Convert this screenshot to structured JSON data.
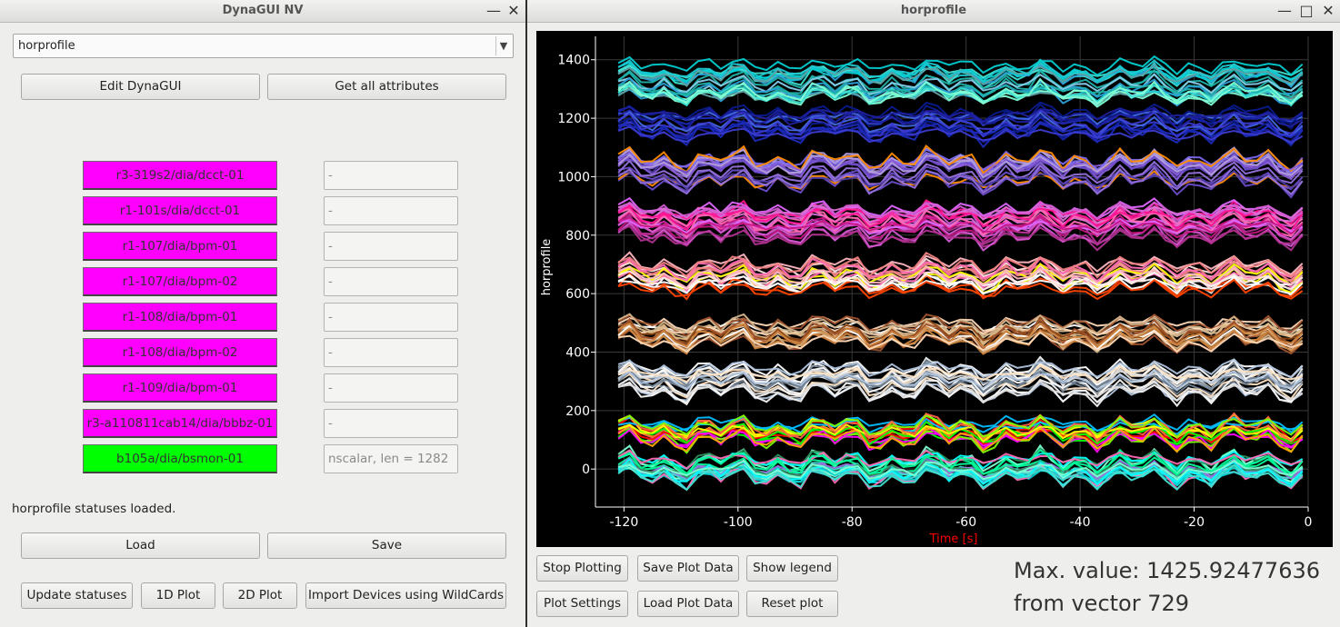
{
  "left_window": {
    "title": "DynaGUI NV",
    "min_symbol": "—",
    "close_symbol": "✕",
    "combo_value": "horprofile",
    "combo_arrow": "⌵",
    "edit_button": "Edit DynaGUI",
    "get_all_button": "Get all attributes",
    "devices": [
      {
        "name": "r3-319s2/dia/dcct-01",
        "value": "-",
        "color": "#ff00ff"
      },
      {
        "name": "r1-101s/dia/dcct-01",
        "value": "-",
        "color": "#ff00ff"
      },
      {
        "name": "r1-107/dia/bpm-01",
        "value": "-",
        "color": "#ff00ff"
      },
      {
        "name": "r1-107/dia/bpm-02",
        "value": "-",
        "color": "#ff00ff"
      },
      {
        "name": "r1-108/dia/bpm-01",
        "value": "-",
        "color": "#ff00ff"
      },
      {
        "name": "r1-108/dia/bpm-02",
        "value": "-",
        "color": "#ff00ff"
      },
      {
        "name": "r1-109/dia/bpm-01",
        "value": "-",
        "color": "#ff00ff"
      },
      {
        "name": "r3-a110811cab14/dia/bbbz-01",
        "value": "-",
        "color": "#ff00ff"
      },
      {
        "name": "b105a/dia/bsmon-01",
        "value": "nscalar, len = 1282",
        "color": "#00ff00"
      }
    ],
    "status_text": "horprofile statuses loaded.",
    "load_button": "Load",
    "save_button": "Save",
    "update_button": "Update statuses",
    "plot1d_button": "1D Plot",
    "plot2d_button": "2D Plot",
    "import_button": "Import Devices using WildCards"
  },
  "right_window": {
    "title": "horprofile",
    "min_symbol": "—",
    "max_symbol": "□",
    "close_symbol": "✕",
    "stop_button": "Stop Plotting",
    "save_plot_button": "Save Plot Data",
    "legend_button": "Show legend",
    "settings_button": "Plot Settings",
    "load_plot_button": "Load Plot Data",
    "reset_button": "Reset plot",
    "max_line1": "Max. value: 1425.92477636",
    "max_line2": "from vector 729"
  },
  "chart_data": {
    "type": "line",
    "xlabel": "Time [s]",
    "ylabel": "horprofile",
    "xlim": [
      -125,
      0
    ],
    "ylim": [
      -130,
      1480
    ],
    "x_ticks": [
      -120,
      -100,
      -80,
      -60,
      -40,
      -20,
      0
    ],
    "y_ticks": [
      0,
      200,
      400,
      600,
      800,
      1000,
      1200,
      1400
    ],
    "grid": true,
    "xlabel_color": "#ff0000",
    "max_value": 1425.92477636,
    "max_vector": 729,
    "x": [
      -121,
      -119,
      -117,
      -115,
      -113,
      -111,
      -109,
      -107,
      -105,
      -103,
      -101,
      -99,
      -97,
      -95,
      -93,
      -91,
      -89,
      -87,
      -85,
      -83,
      -81,
      -79,
      -77,
      -75,
      -73,
      -71,
      -69,
      -67,
      -65,
      -63,
      -61,
      -59,
      -57,
      -55,
      -53,
      -51,
      -49,
      -47,
      -45,
      -43,
      -41,
      -39,
      -37,
      -35,
      -33,
      -31,
      -29,
      -27,
      -25,
      -23,
      -21,
      -19,
      -17,
      -15,
      -13,
      -11,
      -9,
      -7,
      -5,
      -3,
      -1
    ],
    "bands": [
      {
        "base": 1330,
        "spread": 110,
        "count": 22,
        "colors": [
          "#1ec8d2",
          "#2a9fd6",
          "#40e0d0",
          "#00ced1",
          "#20b2aa",
          "#7fffd4",
          "#5f9ea0",
          "#87ceeb"
        ]
      },
      {
        "base": 1180,
        "spread": 80,
        "count": 14,
        "colors": [
          "#1b2ab8",
          "#0a1a8a",
          "#3b3bd0",
          "#2020a0",
          "#4169e1"
        ]
      },
      {
        "base": 1020,
        "spread": 90,
        "count": 18,
        "colors": [
          "#8a5cd6",
          "#6a4cc8",
          "#9370db",
          "#b39ddb",
          "#7b68ee",
          "#ff8c00",
          "#4a3aa0"
        ]
      },
      {
        "base": 840,
        "spread": 100,
        "count": 22,
        "colors": [
          "#d25ad2",
          "#e066ff",
          "#ff69b4",
          "#ff1493",
          "#c71585",
          "#da70d6",
          "#b03090"
        ]
      },
      {
        "base": 660,
        "spread": 90,
        "count": 18,
        "colors": [
          "#ffffff",
          "#ffe4e1",
          "#ffb6c1",
          "#f08080",
          "#ff4500",
          "#ffff00",
          "#ff69b4"
        ]
      },
      {
        "base": 470,
        "spread": 80,
        "count": 18,
        "colors": [
          "#a0522d",
          "#cd853f",
          "#d2b48c",
          "#ffdab9",
          "#ffffff",
          "#deb887",
          "#8b4513"
        ]
      },
      {
        "base": 300,
        "spread": 90,
        "count": 20,
        "colors": [
          "#ffffff",
          "#f5f5f5",
          "#708090",
          "#b0c4de",
          "#ffe4c4",
          "#dcdcdc",
          "#778899"
        ]
      },
      {
        "base": 130,
        "spread": 60,
        "count": 16,
        "colors": [
          "#ff0000",
          "#00ff00",
          "#ff00ff",
          "#ffa500",
          "#00bfff",
          "#ffff00",
          "#ff6347",
          "#7cfc00"
        ]
      },
      {
        "base": 0,
        "spread": 70,
        "count": 22,
        "colors": [
          "#00ffff",
          "#00fa9a",
          "#40e0d0",
          "#7fffd4",
          "#00ced1",
          "#48d1cc",
          "#9370db",
          "#ff69b4",
          "#2e8b57"
        ]
      }
    ]
  }
}
